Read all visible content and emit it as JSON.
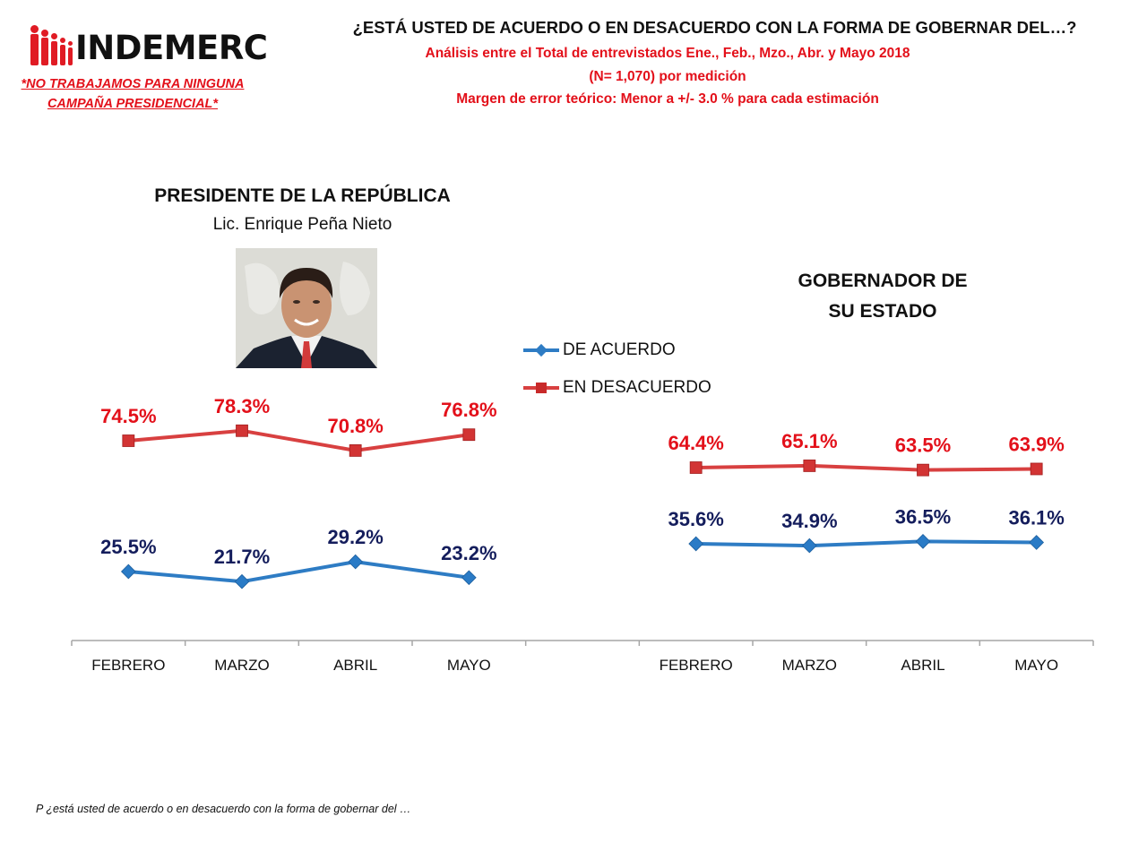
{
  "brand": {
    "logo_text": "INDEMERC",
    "disclaimer_line1": "*NO TRABAJAMOS PARA NINGUNA",
    "disclaimer_line2": "CAMPAÑA PRESIDENCIAL*"
  },
  "header": {
    "title": "¿ESTÁ USTED DE ACUERDO O EN DESACUERDO CON LA FORMA DE GOBERNAR DEL…?",
    "subtitle_1": "Análisis entre el Total de entrevistados Ene., Feb., Mzo., Abr. y Mayo 2018",
    "subtitle_2": "(N= 1,070) por medición",
    "subtitle_3": "Margen de error teórico: Menor a +/- 3.0 % para cada estimación"
  },
  "panels": {
    "president": {
      "title": "PRESIDENTE DE LA REPÚBLICA",
      "subtitle": "Lic. Enrique Peña Nieto",
      "photo": "portrait-photo"
    },
    "governor": {
      "title_line1": "GOBERNADOR DE",
      "title_line2": "SU ESTADO"
    }
  },
  "legend": {
    "items": [
      {
        "label": "DE ACUERDO",
        "icon": "blue-diamond-line-icon"
      },
      {
        "label": "EN DESACUERDO",
        "icon": "red-square-line-icon"
      }
    ]
  },
  "colors": {
    "de_acuerdo_line": "#2e7cc4",
    "de_acuerdo_label": "#141d5c",
    "en_desacuerdo_line": "#d84040",
    "en_desacuerdo_label": "#e3101a",
    "axis": "#a6a6a6",
    "brand_red": "#e01b24"
  },
  "footnote": "P ¿está usted de acuerdo o en desacuerdo con la forma de gobernar del …",
  "chart_data": [
    {
      "type": "line",
      "title": "PRESIDENTE DE LA REPÚBLICA",
      "categories": [
        "FEBRERO",
        "MARZO",
        "ABRIL",
        "MAYO"
      ],
      "series": [
        {
          "name": "DE ACUERDO",
          "values": [
            25.5,
            21.7,
            29.2,
            23.2
          ],
          "labels": [
            "25.5%",
            "21.7%",
            "29.2%",
            "23.2%"
          ]
        },
        {
          "name": "EN DESACUERDO",
          "values": [
            74.5,
            78.3,
            70.8,
            76.8
          ],
          "labels": [
            "74.5%",
            "78.3%",
            "70.8%",
            "76.8%"
          ]
        }
      ],
      "xlabel": "",
      "ylabel": "",
      "grid": false,
      "legend": "center"
    },
    {
      "type": "line",
      "title": "GOBERNADOR DE SU ESTADO",
      "categories": [
        "FEBRERO",
        "MARZO",
        "ABRIL",
        "MAYO"
      ],
      "series": [
        {
          "name": "DE ACUERDO",
          "values": [
            35.6,
            34.9,
            36.5,
            36.1
          ],
          "labels": [
            "35.6%",
            "34.9%",
            "36.5%",
            "36.1%"
          ]
        },
        {
          "name": "EN DESACUERDO",
          "values": [
            64.4,
            65.1,
            63.5,
            63.9
          ],
          "labels": [
            "64.4%",
            "65.1%",
            "63.5%",
            "63.9%"
          ]
        }
      ],
      "xlabel": "",
      "ylabel": "",
      "grid": false,
      "legend": "center"
    }
  ]
}
